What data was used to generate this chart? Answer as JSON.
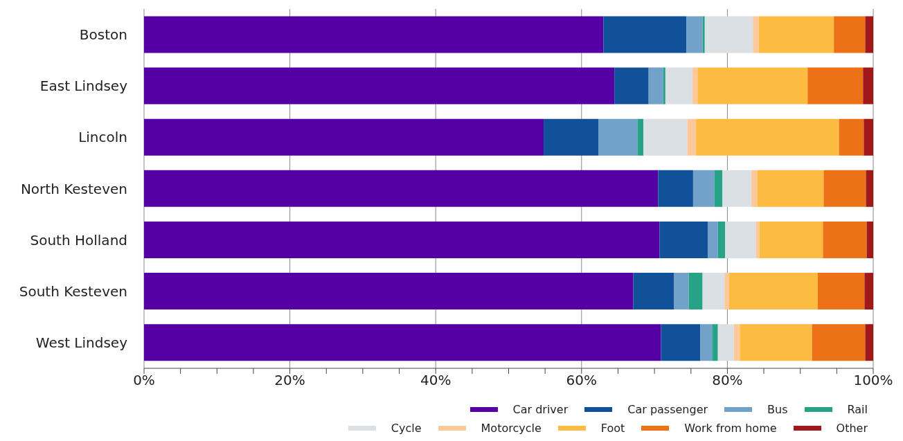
{
  "chart_data": {
    "type": "bar",
    "orientation": "horizontal",
    "stacked": true,
    "categories": [
      "Boston",
      "East Lindsey",
      "Lincoln",
      "North Kesteven",
      "South Holland",
      "South Kesteven",
      "West Lindsey"
    ],
    "series": [
      {
        "name": "Car driver",
        "color": "#5400a5",
        "values": [
          63.0,
          64.5,
          54.8,
          70.5,
          70.7,
          67.1,
          70.9
        ]
      },
      {
        "name": "Car passenger",
        "color": "#105199",
        "values": [
          11.4,
          4.7,
          7.5,
          4.8,
          6.6,
          5.6,
          5.4
        ]
      },
      {
        "name": "Bus",
        "color": "#72a1c9",
        "values": [
          2.2,
          2.0,
          5.4,
          2.9,
          1.4,
          2.0,
          1.6
        ]
      },
      {
        "name": "Rail",
        "color": "#26a386",
        "values": [
          0.3,
          0.3,
          0.8,
          1.1,
          1.0,
          1.9,
          0.8
        ]
      },
      {
        "name": "Cycle",
        "color": "#dbe0e4",
        "values": [
          6.6,
          3.7,
          6.0,
          4.0,
          4.2,
          3.0,
          2.2
        ]
      },
      {
        "name": "Motorcycle",
        "color": "#fdc89c",
        "values": [
          0.8,
          0.7,
          1.2,
          0.8,
          0.5,
          0.6,
          0.8
        ]
      },
      {
        "name": "Foot",
        "color": "#fdbb42",
        "values": [
          10.3,
          15.1,
          19.6,
          9.1,
          8.7,
          12.2,
          9.9
        ]
      },
      {
        "name": "Work from home",
        "color": "#ed7217",
        "values": [
          4.3,
          7.6,
          3.4,
          5.8,
          6.0,
          6.4,
          7.3
        ]
      },
      {
        "name": "Other",
        "color": "#a11819",
        "values": [
          1.1,
          1.4,
          1.3,
          1.0,
          0.9,
          1.2,
          1.1
        ]
      }
    ],
    "xlim": [
      0,
      100
    ],
    "xticks": [
      {
        "value": 0,
        "label": "0%"
      },
      {
        "value": 5,
        "label": null
      },
      {
        "value": 10,
        "label": null
      },
      {
        "value": 15,
        "label": null
      },
      {
        "value": 20,
        "label": "20%"
      },
      {
        "value": 25,
        "label": null
      },
      {
        "value": 30,
        "label": null
      },
      {
        "value": 35,
        "label": null
      },
      {
        "value": 40,
        "label": "40%"
      },
      {
        "value": 45,
        "label": null
      },
      {
        "value": 50,
        "label": null
      },
      {
        "value": 55,
        "label": null
      },
      {
        "value": 60,
        "label": "60%"
      },
      {
        "value": 65,
        "label": null
      },
      {
        "value": 70,
        "label": null
      },
      {
        "value": 75,
        "label": null
      },
      {
        "value": 80,
        "label": "80%"
      },
      {
        "value": 85,
        "label": null
      },
      {
        "value": 90,
        "label": null
      },
      {
        "value": 95,
        "label": null
      },
      {
        "value": 100,
        "label": "100%"
      }
    ],
    "grid": "x",
    "legend": "bottom right"
  }
}
